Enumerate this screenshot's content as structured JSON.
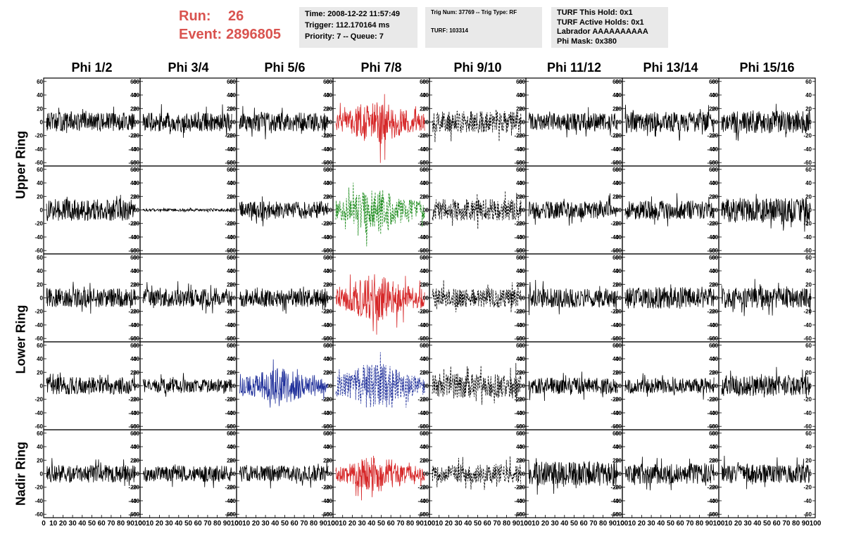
{
  "header": {
    "run_label": "Run:",
    "run_value": "26",
    "event_label": "Event:",
    "event_value": "2896805",
    "time": "Time: 2008-12-22 11:57:49",
    "trigger": "Trigger: 112.170164 ms",
    "priority": "Priority: 7 -- Queue: 7",
    "trig_num": "Trig Num: 37769 -- Trig Type: RF",
    "turf": "TURF: 103314",
    "turf_this_hold": "TURF This Hold: 0x1",
    "turf_active_holds": "TURF Active Holds: 0x1",
    "labrador": "Labrador AAAAAAAAAA",
    "phi_mask": "Phi Mask: 0x380"
  },
  "columns": [
    "Phi 1/2",
    "Phi 3/4",
    "Phi 5/6",
    "Phi 7/8",
    "Phi 9/10",
    "Phi 11/12",
    "Phi 13/14",
    "Phi 15/16"
  ],
  "rows": [
    "Upper Ring",
    "Lower Ring",
    "Nadir Ring"
  ],
  "colors": {
    "black": "#000000",
    "red": "#d62728",
    "green": "#1a8a1a",
    "blue": "#1f2f9a",
    "header_red": "#d9534f",
    "info_bg": "#e9e9e9"
  },
  "chart_data": {
    "type": "line",
    "description_axes": {
      "xlim": [
        0,
        100
      ],
      "ylim": [
        -65,
        65
      ]
    },
    "y_ticks": [
      -60,
      -40,
      -20,
      0,
      20,
      40,
      60
    ],
    "x_ticks": [
      0,
      10,
      20,
      30,
      40,
      50,
      60,
      70,
      80,
      90,
      100
    ],
    "panel_rows": 5,
    "panel_cols": 8,
    "panels": [
      {
        "row": 0,
        "col": 0,
        "color": "black",
        "amp": 14,
        "style": "solid"
      },
      {
        "row": 0,
        "col": 1,
        "color": "black",
        "amp": 14,
        "style": "solid"
      },
      {
        "row": 0,
        "col": 2,
        "color": "black",
        "amp": 14,
        "style": "solid"
      },
      {
        "row": 0,
        "col": 3,
        "color": "red",
        "amp": 22,
        "style": "solid"
      },
      {
        "row": 0,
        "col": 4,
        "color": "black",
        "amp": 16,
        "style": "dashed"
      },
      {
        "row": 0,
        "col": 5,
        "color": "black",
        "amp": 13,
        "style": "solid"
      },
      {
        "row": 0,
        "col": 6,
        "color": "black",
        "amp": 15,
        "style": "solid"
      },
      {
        "row": 0,
        "col": 7,
        "color": "black",
        "amp": 17,
        "style": "solid"
      },
      {
        "row": 1,
        "col": 0,
        "color": "black",
        "amp": 16,
        "style": "solid"
      },
      {
        "row": 1,
        "col": 1,
        "color": "black",
        "amp": 2,
        "style": "solid"
      },
      {
        "row": 1,
        "col": 2,
        "color": "black",
        "amp": 13,
        "style": "solid"
      },
      {
        "row": 1,
        "col": 3,
        "color": "green",
        "amp": 22,
        "style": "dashed"
      },
      {
        "row": 1,
        "col": 4,
        "color": "black",
        "amp": 16,
        "style": "dashed"
      },
      {
        "row": 1,
        "col": 5,
        "color": "black",
        "amp": 13,
        "style": "solid"
      },
      {
        "row": 1,
        "col": 6,
        "color": "black",
        "amp": 14,
        "style": "solid"
      },
      {
        "row": 1,
        "col": 7,
        "color": "black",
        "amp": 18,
        "style": "solid"
      },
      {
        "row": 2,
        "col": 0,
        "color": "black",
        "amp": 14,
        "style": "solid"
      },
      {
        "row": 2,
        "col": 1,
        "color": "black",
        "amp": 13,
        "style": "solid"
      },
      {
        "row": 2,
        "col": 2,
        "color": "black",
        "amp": 14,
        "style": "solid"
      },
      {
        "row": 2,
        "col": 3,
        "color": "red",
        "amp": 24,
        "style": "solid"
      },
      {
        "row": 2,
        "col": 4,
        "color": "black",
        "amp": 14,
        "style": "dashed"
      },
      {
        "row": 2,
        "col": 5,
        "color": "black",
        "amp": 14,
        "style": "solid"
      },
      {
        "row": 2,
        "col": 6,
        "color": "black",
        "amp": 16,
        "style": "solid"
      },
      {
        "row": 2,
        "col": 7,
        "color": "black",
        "amp": 15,
        "style": "solid"
      },
      {
        "row": 3,
        "col": 0,
        "color": "black",
        "amp": 13,
        "style": "solid"
      },
      {
        "row": 3,
        "col": 1,
        "color": "black",
        "amp": 10,
        "style": "solid"
      },
      {
        "row": 3,
        "col": 2,
        "color": "blue",
        "amp": 18,
        "style": "solid"
      },
      {
        "row": 3,
        "col": 3,
        "color": "blue",
        "amp": 24,
        "style": "dashed"
      },
      {
        "row": 3,
        "col": 4,
        "color": "black",
        "amp": 18,
        "style": "dashed"
      },
      {
        "row": 3,
        "col": 5,
        "color": "black",
        "amp": 12,
        "style": "solid"
      },
      {
        "row": 3,
        "col": 6,
        "color": "black",
        "amp": 11,
        "style": "solid"
      },
      {
        "row": 3,
        "col": 7,
        "color": "black",
        "amp": 15,
        "style": "solid"
      },
      {
        "row": 4,
        "col": 0,
        "color": "black",
        "amp": 13,
        "style": "solid"
      },
      {
        "row": 4,
        "col": 1,
        "color": "black",
        "amp": 12,
        "style": "solid"
      },
      {
        "row": 4,
        "col": 2,
        "color": "black",
        "amp": 12,
        "style": "solid"
      },
      {
        "row": 4,
        "col": 3,
        "color": "red",
        "amp": 18,
        "style": "solid"
      },
      {
        "row": 4,
        "col": 4,
        "color": "black",
        "amp": 14,
        "style": "dashed"
      },
      {
        "row": 4,
        "col": 5,
        "color": "black",
        "amp": 18,
        "style": "solid"
      },
      {
        "row": 4,
        "col": 6,
        "color": "black",
        "amp": 15,
        "style": "solid"
      },
      {
        "row": 4,
        "col": 7,
        "color": "black",
        "amp": 14,
        "style": "solid"
      }
    ]
  }
}
